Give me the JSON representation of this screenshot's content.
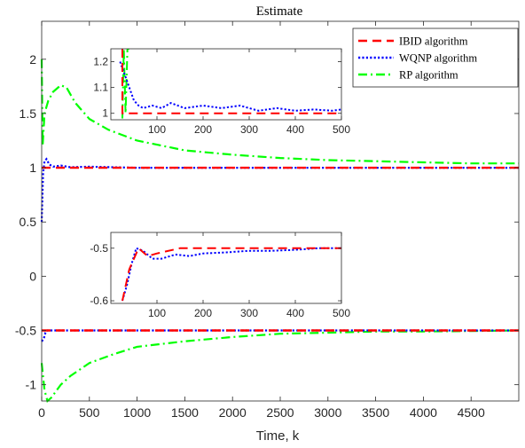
{
  "chart_data": {
    "type": "line",
    "title": "Estimate",
    "xlabel": "Time, k",
    "ylabel": "",
    "xlim": [
      0,
      5000
    ],
    "ylim": [
      -1.15,
      2.35
    ],
    "xticks": [
      0,
      500,
      1000,
      1500,
      2000,
      2500,
      3000,
      3500,
      4000,
      4500
    ],
    "yticks": [
      -1,
      -0.5,
      0,
      0.5,
      1,
      1.5,
      2
    ],
    "legend_position": "top-right",
    "grid": false,
    "series": [
      {
        "name": "IBID algorithm",
        "color": "#ff0000",
        "style": "dashed",
        "upper": [
          [
            0,
            1.0
          ],
          [
            5000,
            1.0
          ]
        ],
        "lower": [
          [
            0,
            -0.5
          ],
          [
            5000,
            -0.5
          ]
        ]
      },
      {
        "name": "WQNP algorithm",
        "color": "#0000ff",
        "style": "dotted",
        "upper": [
          [
            0,
            0.5
          ],
          [
            15,
            0.95
          ],
          [
            30,
            1.06
          ],
          [
            50,
            1.08
          ],
          [
            80,
            1.03
          ],
          [
            120,
            1.01
          ],
          [
            200,
            1.02
          ],
          [
            300,
            1.005
          ],
          [
            500,
            1.01
          ],
          [
            1000,
            1.0
          ],
          [
            2000,
            1.0
          ],
          [
            3000,
            1.0
          ],
          [
            4000,
            1.0
          ],
          [
            5000,
            1.0
          ]
        ],
        "lower": [
          [
            0,
            -0.6
          ],
          [
            20,
            -0.58
          ],
          [
            40,
            -0.52
          ],
          [
            60,
            -0.5
          ],
          [
            100,
            -0.5
          ],
          [
            200,
            -0.5
          ],
          [
            500,
            -0.5
          ],
          [
            1000,
            -0.5
          ],
          [
            2000,
            -0.5
          ],
          [
            3000,
            -0.5
          ],
          [
            4000,
            -0.5
          ],
          [
            5000,
            -0.5
          ]
        ]
      },
      {
        "name": "RP algorithm",
        "color": "#00ff00",
        "style": "dashdot",
        "upper": [
          [
            0,
            2.0
          ],
          [
            10,
            1.2
          ],
          [
            30,
            1.5
          ],
          [
            70,
            1.62
          ],
          [
            120,
            1.7
          ],
          [
            200,
            1.76
          ],
          [
            260,
            1.74
          ],
          [
            350,
            1.6
          ],
          [
            500,
            1.45
          ],
          [
            700,
            1.35
          ],
          [
            1000,
            1.25
          ],
          [
            1500,
            1.16
          ],
          [
            2000,
            1.12
          ],
          [
            2500,
            1.09
          ],
          [
            3000,
            1.07
          ],
          [
            3500,
            1.06
          ],
          [
            4000,
            1.05
          ],
          [
            4500,
            1.04
          ],
          [
            5000,
            1.04
          ]
        ],
        "lower": [
          [
            0,
            -0.8
          ],
          [
            30,
            -1.05
          ],
          [
            60,
            -1.15
          ],
          [
            100,
            -1.12
          ],
          [
            200,
            -1.0
          ],
          [
            300,
            -0.92
          ],
          [
            500,
            -0.8
          ],
          [
            750,
            -0.72
          ],
          [
            1000,
            -0.65
          ],
          [
            1500,
            -0.6
          ],
          [
            2000,
            -0.56
          ],
          [
            2500,
            -0.53
          ],
          [
            3000,
            -0.52
          ],
          [
            3500,
            -0.51
          ],
          [
            4000,
            -0.51
          ],
          [
            5000,
            -0.5
          ]
        ]
      }
    ],
    "insets": [
      {
        "xlim": [
          0,
          500
        ],
        "ylim": [
          0.975,
          1.25
        ],
        "xticks": [
          100,
          200,
          300,
          400,
          500
        ],
        "yticks": [
          1,
          1.1,
          1.2
        ],
        "ytick_labels": [
          "1",
          "1.1",
          "1.2"
        ],
        "series": [
          {
            "name": "IBID algorithm",
            "points": [
              [
                25,
                1.25
              ],
              [
                25,
                1.0
              ],
              [
                500,
                1.0
              ]
            ]
          },
          {
            "name": "WQNP algorithm",
            "points": [
              [
                20,
                1.2
              ],
              [
                30,
                1.15
              ],
              [
                40,
                1.1
              ],
              [
                50,
                1.05
              ],
              [
                60,
                1.03
              ],
              [
                70,
                1.02
              ],
              [
                90,
                1.03
              ],
              [
                110,
                1.02
              ],
              [
                130,
                1.04
              ],
              [
                160,
                1.02
              ],
              [
                200,
                1.03
              ],
              [
                240,
                1.02
              ],
              [
                280,
                1.03
              ],
              [
                320,
                1.01
              ],
              [
                360,
                1.02
              ],
              [
                400,
                1.01
              ],
              [
                440,
                1.015
              ],
              [
                480,
                1.01
              ],
              [
                500,
                1.015
              ]
            ]
          },
          {
            "name": "RP algorithm",
            "points": [
              [
                25,
                0.98
              ],
              [
                28,
                1.25
              ],
              [
                32,
                1.0
              ],
              [
                36,
                1.25
              ],
              [
                40,
                1.25
              ]
            ]
          }
        ]
      },
      {
        "xlim": [
          0,
          500
        ],
        "ylim": [
          -0.605,
          -0.47
        ],
        "xticks": [
          100,
          200,
          300,
          400,
          500
        ],
        "yticks": [
          -0.5,
          -0.6
        ],
        "ytick_labels": [
          "-0.5",
          "-0.6"
        ],
        "series": [
          {
            "name": "IBID algorithm",
            "points": [
              [
                25,
                -0.6
              ],
              [
                30,
                -0.58
              ],
              [
                40,
                -0.54
              ],
              [
                60,
                -0.5
              ],
              [
                80,
                -0.515
              ],
              [
                100,
                -0.51
              ],
              [
                150,
                -0.5
              ],
              [
                500,
                -0.5
              ]
            ]
          },
          {
            "name": "WQNP algorithm",
            "points": [
              [
                25,
                -0.6
              ],
              [
                35,
                -0.57
              ],
              [
                45,
                -0.53
              ],
              [
                55,
                -0.5
              ],
              [
                70,
                -0.505
              ],
              [
                90,
                -0.52
              ],
              [
                110,
                -0.52
              ],
              [
                140,
                -0.512
              ],
              [
                170,
                -0.515
              ],
              [
                200,
                -0.51
              ],
              [
                250,
                -0.508
              ],
              [
                300,
                -0.505
              ],
              [
                350,
                -0.505
              ],
              [
                400,
                -0.503
              ],
              [
                450,
                -0.5
              ],
              [
                500,
                -0.5
              ]
            ]
          }
        ]
      }
    ]
  }
}
